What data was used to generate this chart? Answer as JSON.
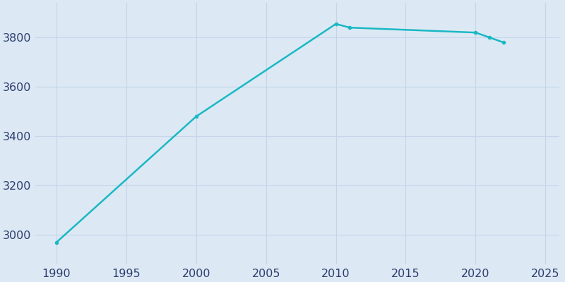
{
  "years": [
    1990,
    2000,
    2010,
    2011,
    2020,
    2021,
    2022
  ],
  "population": [
    2970,
    3480,
    3855,
    3840,
    3820,
    3800,
    3780
  ],
  "line_color": "#1ab8c4",
  "marker": "o",
  "marker_size": 3,
  "line_width": 1.8,
  "background_color": "#dce9f5",
  "plot_bg_color": "#dce9f5",
  "grid_color": "#c5d5e8",
  "xlim": [
    1988.5,
    2026
  ],
  "ylim": [
    2880,
    3940
  ],
  "yticks": [
    3000,
    3200,
    3400,
    3600,
    3800
  ],
  "xticks": [
    1990,
    1995,
    2000,
    2005,
    2010,
    2015,
    2020,
    2025
  ],
  "tick_label_color": "#2e3d6e",
  "tick_label_size": 11.5
}
